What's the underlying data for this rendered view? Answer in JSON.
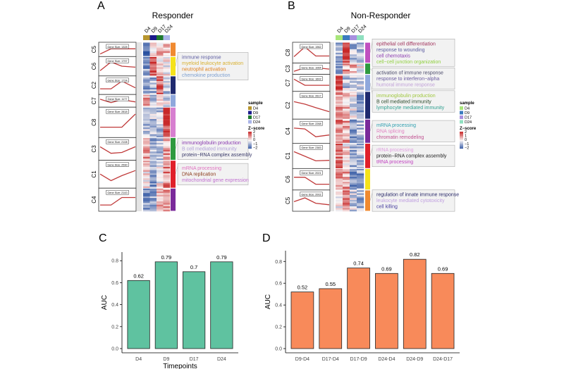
{
  "panels": {
    "A": {
      "letter": "A",
      "title": "Responder"
    },
    "B": {
      "letter": "B",
      "title": "Non-Responder"
    },
    "C": {
      "letter": "C"
    },
    "D": {
      "letter": "D"
    }
  },
  "samples": [
    "D4",
    "D9",
    "D17",
    "D24"
  ],
  "legend": {
    "sample_title": "sample",
    "zscore_title": "Z−score",
    "zscore_ticks": [
      "2",
      "1",
      "0",
      "−1",
      "−2"
    ],
    "sample_colors_A": [
      "#b8962e",
      "#1a1a8c",
      "#1e7a2e",
      "#a9b4e8"
    ],
    "sample_colors_B": [
      "#a8e67a",
      "#3b7bbf",
      "#a890e0",
      "#8fe0c0"
    ]
  },
  "heatmaps": {
    "A": {
      "clusters": [
        {
          "id": "C5",
          "gene_size": "Gene Size: 1328",
          "size": 1328,
          "color": "#f08a30",
          "profile": [
            -1.5,
            0.5,
            0.5,
            0.5
          ]
        },
        {
          "id": "C6",
          "gene_size": "Gene Size: 1797",
          "size": 1797,
          "color": "#f5e21a",
          "profile": [
            -1,
            1.5,
            0.3,
            0
          ]
        },
        {
          "id": "C2",
          "gene_size": "Gene Size: 1724",
          "size": 1724,
          "color": "#1f2a6e",
          "profile": [
            -0.8,
            -0.8,
            1.5,
            -0.5
          ]
        },
        {
          "id": "C7",
          "gene_size": "Gene Size: 1177",
          "size": 1177,
          "color": "#8fa8dc",
          "profile": [
            1,
            -0.5,
            0.8,
            -0.2
          ]
        },
        {
          "id": "C8",
          "gene_size": "Gene Size: 2818",
          "size": 2818,
          "color": "#d77fd0",
          "profile": [
            -0.6,
            -0.6,
            -0.6,
            1.8
          ]
        },
        {
          "id": "C3",
          "gene_size": "Gene Size: 2108",
          "size": 2108,
          "color": "#2e9a3e",
          "profile": [
            0.8,
            -0.8,
            -0.6,
            0.8
          ]
        },
        {
          "id": "C1",
          "gene_size": "Gene Size: 2590",
          "size": 2590,
          "color": "#e0202a",
          "profile": [
            0.3,
            -1,
            0,
            1
          ]
        },
        {
          "id": "C4",
          "gene_size": "Gene Size: 2143",
          "size": 2143,
          "color": "#7a2a9a",
          "profile": [
            -1,
            -1,
            0.8,
            0.8
          ]
        }
      ],
      "annotations": [
        {
          "cluster": 1,
          "terms": [
            {
              "text": "immune response",
              "color": "#5a5aa0"
            },
            {
              "text": "myeloid leukocyte activation",
              "color": "#d8b030"
            },
            {
              "text": "neutrophil activation",
              "color": "#e0801a"
            },
            {
              "text": "chemokine production",
              "color": "#7fa0d0"
            }
          ]
        },
        {
          "cluster": 5,
          "terms": [
            {
              "text": "immunoglobulin production",
              "color": "#8a3ab0"
            },
            {
              "text": "B cell mediated immunity",
              "color": "#b0a0d8"
            },
            {
              "text": "protein−RNA complex assembly",
              "color": "#3a3a6a"
            }
          ]
        },
        {
          "cluster": 6,
          "terms": [
            {
              "text": "mRNA processing",
              "color": "#e070c0"
            },
            {
              "text": "DNA replication",
              "color": "#8a3a1a"
            },
            {
              "text": "mitochondrial gene expression",
              "color": "#c070d0"
            }
          ]
        }
      ]
    },
    "B": {
      "clusters": [
        {
          "id": "C8",
          "gene_size": "Gene Size: 1962",
          "size": 1962,
          "color": "#c050c0",
          "profile": [
            -0.8,
            1.8,
            -0.6,
            -0.6
          ]
        },
        {
          "id": "C3",
          "gene_size": "Gene Size: 1064",
          "size": 1064,
          "color": "#2e9a3e",
          "profile": [
            -1,
            0.8,
            0.8,
            0.1
          ]
        },
        {
          "id": "C7",
          "gene_size": "Gene Size: 1602",
          "size": 1602,
          "color": "#8fa8dc",
          "profile": [
            1.5,
            -0.5,
            -0.5,
            -0.5
          ]
        },
        {
          "id": "C2",
          "gene_size": "Gene Size: 2617",
          "size": 2617,
          "color": "#1f2a6e",
          "profile": [
            1,
            0.5,
            -0.2,
            -1
          ]
        },
        {
          "id": "C4",
          "gene_size": "Gene Size: 2268",
          "size": 2268,
          "color": "#7a2a9a",
          "profile": [
            1,
            0.8,
            -1,
            -0.6
          ]
        },
        {
          "id": "C1",
          "gene_size": "Gene Size: 2383",
          "size": 2383,
          "color": "#e0202a",
          "profile": [
            1.2,
            0.2,
            -0.8,
            -0.7
          ]
        },
        {
          "id": "C6",
          "gene_size": "Gene Size: 2021",
          "size": 2021,
          "color": "#f5e21a",
          "profile": [
            0.8,
            0.8,
            -1,
            -1
          ]
        },
        {
          "id": "C5",
          "gene_size": "Gene Size: 2002",
          "size": 2002,
          "color": "#f08a30",
          "profile": [
            0,
            1,
            -0.4,
            -0.8
          ]
        }
      ],
      "annotations": [
        {
          "cluster": 0,
          "terms": [
            {
              "text": "epithelial cell differentiation",
              "color": "#a0305a"
            },
            {
              "text": "response to wounding",
              "color": "#5a5aa0"
            },
            {
              "text": "cell chemotaxis",
              "color": "#8a3ab0"
            },
            {
              "text": "cell−cell junction organization",
              "color": "#90d040"
            }
          ]
        },
        {
          "cluster": 1,
          "terms": [
            {
              "text": "activation of immune response",
              "color": "#4a4a6a"
            },
            {
              "text": "response to interferon−alpha",
              "color": "#6a5aa0"
            },
            {
              "text": "humoral immune response",
              "color": "#c0a0d8"
            }
          ]
        },
        {
          "cluster": 2,
          "terms": [
            {
              "text": "immunoglobulin production",
              "color": "#a0c840"
            },
            {
              "text": "B cell mediated immunity",
              "color": "#2a4a2a"
            },
            {
              "text": "lymphocyte mediated immunity",
              "color": "#30a090"
            }
          ]
        },
        {
          "cluster": 4,
          "terms": [
            {
              "text": "mRNA processing",
              "color": "#30a0b0"
            },
            {
              "text": "RNA splicing",
              "color": "#e080c0"
            },
            {
              "text": "chromatin remodeling",
              "color": "#c05090"
            }
          ]
        },
        {
          "cluster": 5,
          "terms": [
            {
              "text": "rRNA processing",
              "color": "#e0a0e0"
            },
            {
              "text": "protein−RNA complex assembly",
              "color": "#202020"
            },
            {
              "text": "tRNA processing",
              "color": "#c040c0"
            }
          ]
        },
        {
          "cluster": 7,
          "terms": [
            {
              "text": "regulation of innate immune response",
              "color": "#2a2a6a"
            },
            {
              "text": "leukocyte mediated cytotoxicity",
              "color": "#c0a0e0"
            },
            {
              "text": "cell killing",
              "color": "#4a40a0"
            }
          ]
        }
      ]
    }
  },
  "chart_data": [
    {
      "type": "bar",
      "panel": "C",
      "categories": [
        "D4",
        "D9",
        "D17",
        "D24"
      ],
      "values": [
        0.62,
        0.79,
        0.7,
        0.79
      ],
      "labels": [
        "0.62",
        "0.79",
        "0.7",
        "0.79"
      ],
      "xlabel": "Timepoints",
      "ylabel": "AUC",
      "ylim": [
        0,
        0.84
      ],
      "yticks": [
        "0.0",
        "0.2",
        "0.4",
        "0.6",
        "0.8"
      ],
      "color": "#5fc2a0"
    },
    {
      "type": "bar",
      "panel": "D",
      "categories": [
        "D9-D4",
        "D17-D4",
        "D17-D9",
        "D24-D4",
        "D24-D9",
        "D24-D17"
      ],
      "values": [
        0.52,
        0.55,
        0.74,
        0.69,
        0.82,
        0.69
      ],
      "labels": [
        "0.52",
        "0.55",
        "0.74",
        "0.69",
        "0.82",
        "0.69"
      ],
      "xlabel": "",
      "ylabel": "AUC",
      "ylim": [
        0,
        0.86
      ],
      "yticks": [
        "0.0",
        "0.2",
        "0.4",
        "0.6",
        "0.8"
      ],
      "color": "#f88a5a"
    }
  ]
}
